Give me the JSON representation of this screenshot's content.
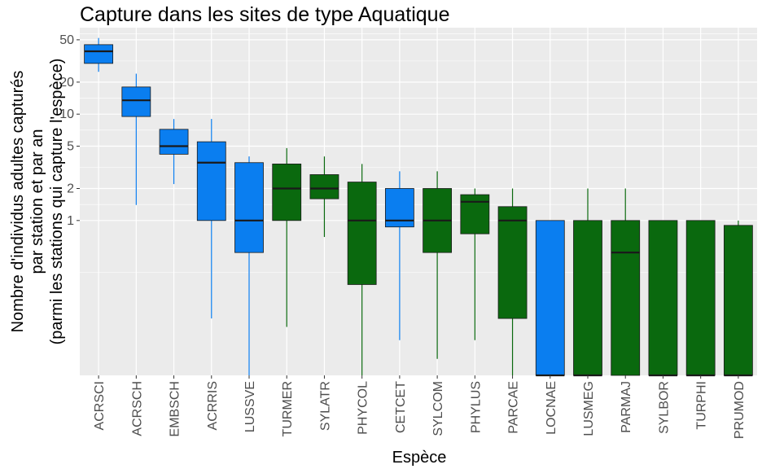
{
  "chart_data": {
    "type": "box",
    "title": "Capture dans les sites de type Aquatique",
    "xlabel": "Espèce",
    "ylabel": [
      "Nombre d'individus adultes capturés",
      "par station et par an",
      "(parmi les stations qui capture l'espèce)"
    ],
    "y_scale": "log",
    "ylim": [
      0.035,
      65
    ],
    "y_ticks": [
      {
        "value": 1,
        "label": "1"
      },
      {
        "value": 2,
        "label": "2"
      },
      {
        "value": 5,
        "label": "5"
      },
      {
        "value": 10,
        "label": "10"
      },
      {
        "value": 20,
        "label": "20"
      },
      {
        "value": 50,
        "label": "50"
      }
    ],
    "grid": true,
    "colors": {
      "blue": "#0a7ef0",
      "green": "#0a690e",
      "panel": "#ebebeb",
      "grid": "#ffffff"
    },
    "boxes": [
      {
        "category": "ACRSCI",
        "color": "blue",
        "whisker_low": 25,
        "q1": 30,
        "median": 39,
        "q3": 45,
        "whisker_high": 52
      },
      {
        "category": "ACRSCH",
        "color": "blue",
        "whisker_low": 1.4,
        "q1": 9.5,
        "median": 13.5,
        "q3": 18,
        "whisker_high": 24
      },
      {
        "category": "EMBSCH",
        "color": "blue",
        "whisker_low": 2.2,
        "q1": 4.2,
        "median": 5,
        "q3": 7.2,
        "whisker_high": 9
      },
      {
        "category": "ACRRIS",
        "color": "blue",
        "whisker_low": 0.12,
        "q1": 1,
        "median": 3.5,
        "q3": 5.5,
        "whisker_high": 9
      },
      {
        "category": "LUSSVE",
        "color": "blue",
        "whisker_low": 0.035,
        "q1": 0.5,
        "median": 1,
        "q3": 3.5,
        "whisker_high": 4
      },
      {
        "category": "TURMER",
        "color": "green",
        "whisker_low": 0.1,
        "q1": 1,
        "median": 2,
        "q3": 3.4,
        "whisker_high": 4.8
      },
      {
        "category": "SYLATR",
        "color": "green",
        "whisker_low": 0.7,
        "q1": 1.6,
        "median": 2,
        "q3": 2.7,
        "whisker_high": 4
      },
      {
        "category": "PHYCOL",
        "color": "green",
        "whisker_low": 0.035,
        "q1": 0.25,
        "median": 1,
        "q3": 2.3,
        "whisker_high": 3.4
      },
      {
        "category": "CETCET",
        "color": "blue",
        "whisker_low": 0.075,
        "q1": 0.87,
        "median": 1,
        "q3": 2,
        "whisker_high": 2.9
      },
      {
        "category": "SYLCOM",
        "color": "green",
        "whisker_low": 0.05,
        "q1": 0.5,
        "median": 1,
        "q3": 2,
        "whisker_high": 2.9
      },
      {
        "category": "PHYLUS",
        "color": "green",
        "whisker_low": 0.075,
        "q1": 0.75,
        "median": 1.5,
        "q3": 1.75,
        "whisker_high": 2
      },
      {
        "category": "PARCAE",
        "color": "green",
        "whisker_low": 0.035,
        "q1": 0.12,
        "median": 1,
        "q3": 1.35,
        "whisker_high": 2
      },
      {
        "category": "LOCNAE",
        "color": "blue",
        "whisker_low": 0.035,
        "q1": 0.035,
        "median": 0.035,
        "q3": 1,
        "whisker_high": 1
      },
      {
        "category": "LUSMEG",
        "color": "green",
        "whisker_low": 0.035,
        "q1": 0.035,
        "median": 0.035,
        "q3": 1,
        "whisker_high": 2
      },
      {
        "category": "PARMAJ",
        "color": "green",
        "whisker_low": 0.035,
        "q1": 0.035,
        "median": 0.5,
        "q3": 1,
        "whisker_high": 2
      },
      {
        "category": "SYLBOR",
        "color": "green",
        "whisker_low": 0.035,
        "q1": 0.035,
        "median": 0.035,
        "q3": 1,
        "whisker_high": 1
      },
      {
        "category": "TURPHI",
        "color": "green",
        "whisker_low": 0.035,
        "q1": 0.035,
        "median": 0.035,
        "q3": 1,
        "whisker_high": 1
      },
      {
        "category": "PRUMOD",
        "color": "green",
        "whisker_low": 0.035,
        "q1": 0.035,
        "median": 0.035,
        "q3": 0.9,
        "whisker_high": 1
      }
    ]
  }
}
